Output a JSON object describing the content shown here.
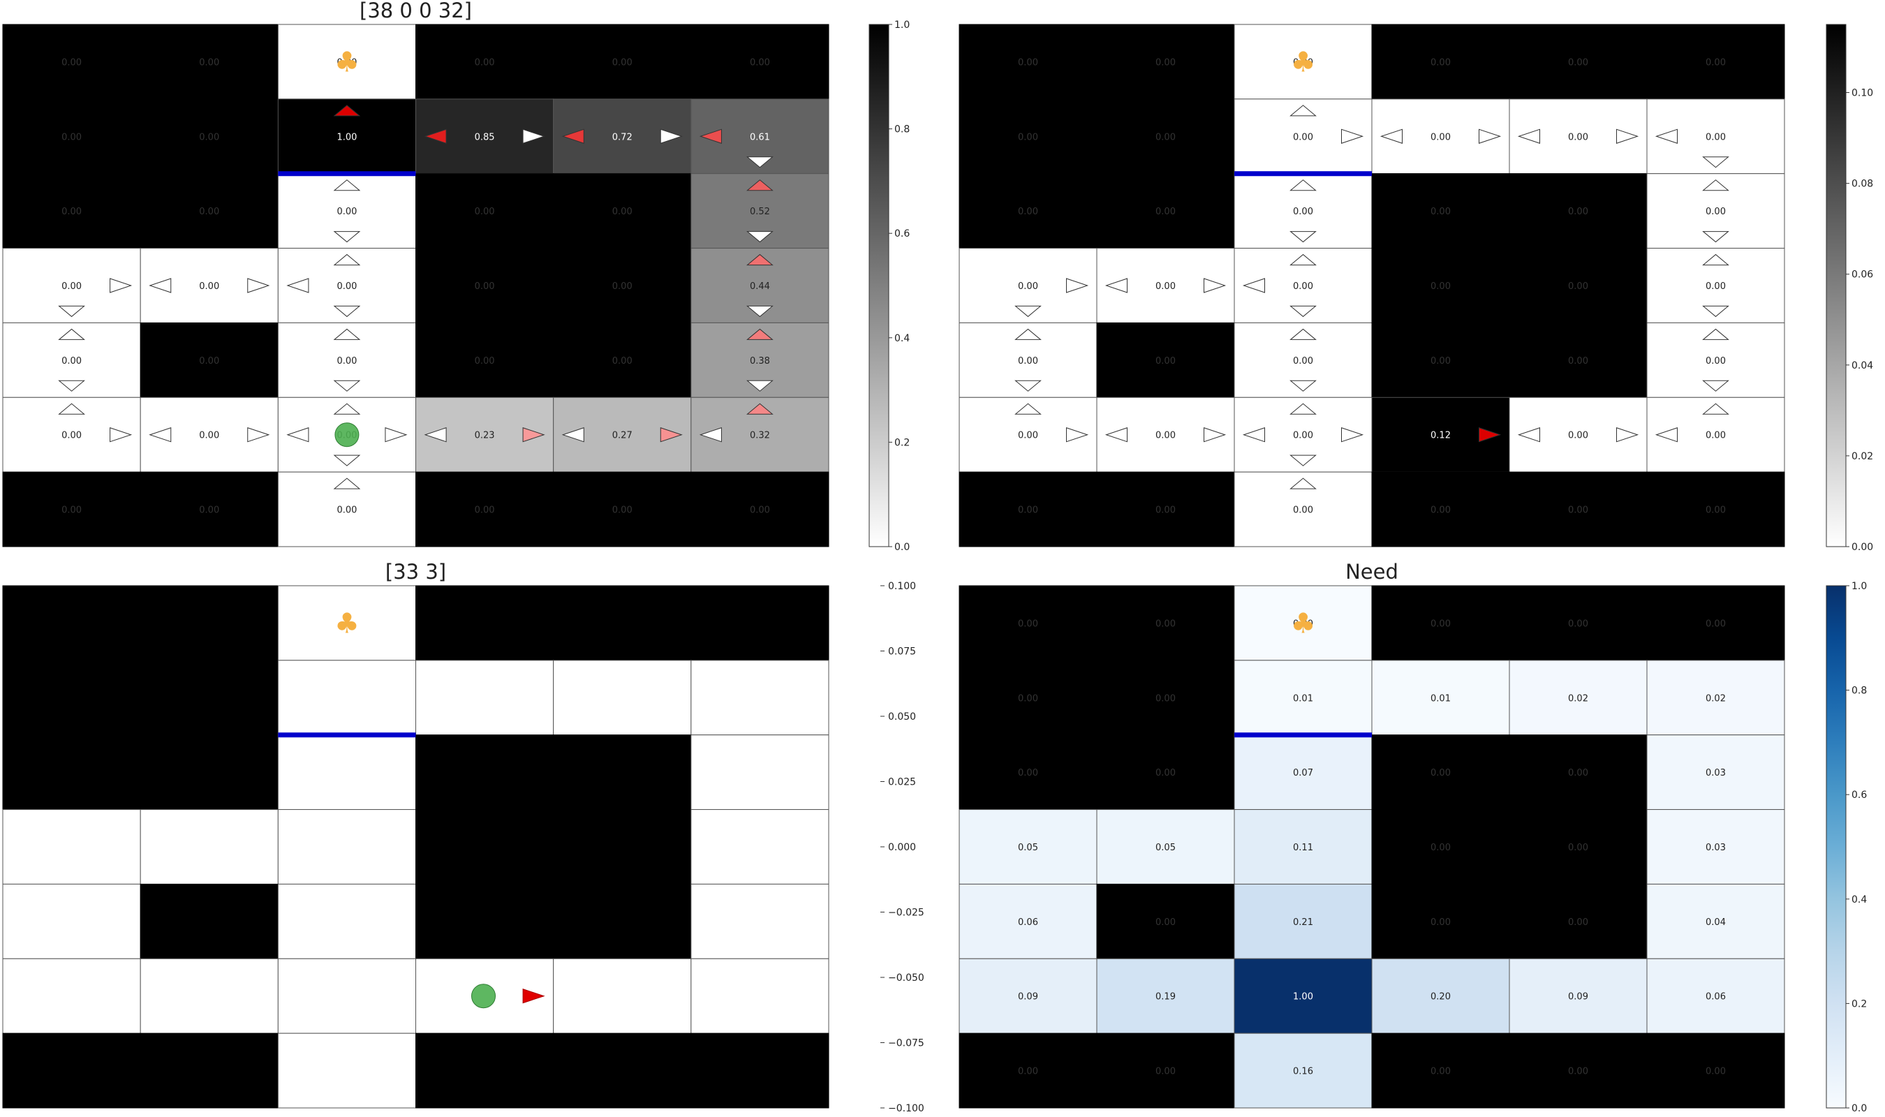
{
  "chart_data": [
    {
      "type": "heatmap",
      "title": "[38 0 0 32]",
      "rows": 7,
      "cols": 6,
      "walls": [
        [
          0,
          0
        ],
        [
          0,
          1
        ],
        [
          0,
          3
        ],
        [
          0,
          4
        ],
        [
          0,
          5
        ],
        [
          1,
          0
        ],
        [
          1,
          1
        ],
        [
          2,
          0
        ],
        [
          2,
          1
        ],
        [
          2,
          3
        ],
        [
          2,
          4
        ],
        [
          3,
          3
        ],
        [
          3,
          4
        ],
        [
          4,
          1
        ],
        [
          4,
          3
        ],
        [
          4,
          4
        ],
        [
          6,
          0
        ],
        [
          6,
          1
        ],
        [
          6,
          3
        ],
        [
          6,
          4
        ],
        [
          6,
          5
        ]
      ],
      "values": [
        [
          0.0,
          0.0,
          0.0,
          0.0,
          0.0,
          0.0
        ],
        [
          0.0,
          0.0,
          1.0,
          0.85,
          0.72,
          0.61
        ],
        [
          0.0,
          0.0,
          0.0,
          0.0,
          0.0,
          0.52
        ],
        [
          0.0,
          0.0,
          0.0,
          0.0,
          0.0,
          0.44
        ],
        [
          0.0,
          0.0,
          0.0,
          0.0,
          0.0,
          0.38
        ],
        [
          0.0,
          0.0,
          0.0,
          0.23,
          0.27,
          0.32
        ],
        [
          0.0,
          0.0,
          0.0,
          0.0,
          0.0,
          0.0
        ]
      ],
      "action_values": [
        {
          "cell": [
            1,
            2
          ],
          "dir": "up",
          "v": 1.0
        },
        {
          "cell": [
            1,
            3
          ],
          "dir": "left",
          "v": 0.85
        },
        {
          "cell": [
            1,
            3
          ],
          "dir": "right",
          "v": 0.0
        },
        {
          "cell": [
            1,
            4
          ],
          "dir": "left",
          "v": 0.72
        },
        {
          "cell": [
            1,
            4
          ],
          "dir": "right",
          "v": 0.0
        },
        {
          "cell": [
            1,
            5
          ],
          "dir": "left",
          "v": 0.61
        },
        {
          "cell": [
            1,
            5
          ],
          "dir": "down",
          "v": 0.0
        },
        {
          "cell": [
            2,
            2
          ],
          "dir": "up",
          "v": 0.0
        },
        {
          "cell": [
            2,
            2
          ],
          "dir": "down",
          "v": 0.0
        },
        {
          "cell": [
            2,
            5
          ],
          "dir": "up",
          "v": 0.52
        },
        {
          "cell": [
            2,
            5
          ],
          "dir": "down",
          "v": 0.0
        },
        {
          "cell": [
            3,
            0
          ],
          "dir": "right",
          "v": 0.0
        },
        {
          "cell": [
            3,
            0
          ],
          "dir": "down",
          "v": 0.0
        },
        {
          "cell": [
            3,
            1
          ],
          "dir": "left",
          "v": 0.0
        },
        {
          "cell": [
            3,
            1
          ],
          "dir": "right",
          "v": 0.0
        },
        {
          "cell": [
            3,
            2
          ],
          "dir": "left",
          "v": 0.0
        },
        {
          "cell": [
            3,
            2
          ],
          "dir": "up",
          "v": 0.0
        },
        {
          "cell": [
            3,
            2
          ],
          "dir": "down",
          "v": 0.0
        },
        {
          "cell": [
            3,
            5
          ],
          "dir": "up",
          "v": 0.44
        },
        {
          "cell": [
            3,
            5
          ],
          "dir": "down",
          "v": 0.0
        },
        {
          "cell": [
            4,
            0
          ],
          "dir": "up",
          "v": 0.0
        },
        {
          "cell": [
            4,
            0
          ],
          "dir": "down",
          "v": 0.0
        },
        {
          "cell": [
            4,
            2
          ],
          "dir": "up",
          "v": 0.0
        },
        {
          "cell": [
            4,
            2
          ],
          "dir": "down",
          "v": 0.0
        },
        {
          "cell": [
            4,
            5
          ],
          "dir": "up",
          "v": 0.38
        },
        {
          "cell": [
            4,
            5
          ],
          "dir": "down",
          "v": 0.0
        },
        {
          "cell": [
            5,
            0
          ],
          "dir": "up",
          "v": 0.0
        },
        {
          "cell": [
            5,
            0
          ],
          "dir": "right",
          "v": 0.0
        },
        {
          "cell": [
            5,
            1
          ],
          "dir": "left",
          "v": 0.0
        },
        {
          "cell": [
            5,
            1
          ],
          "dir": "right",
          "v": 0.0
        },
        {
          "cell": [
            5,
            2
          ],
          "dir": "left",
          "v": 0.0
        },
        {
          "cell": [
            5,
            2
          ],
          "dir": "right",
          "v": 0.0
        },
        {
          "cell": [
            5,
            2
          ],
          "dir": "up",
          "v": 0.0
        },
        {
          "cell": [
            5,
            2
          ],
          "dir": "down",
          "v": 0.0
        },
        {
          "cell": [
            5,
            3
          ],
          "dir": "left",
          "v": 0.0
        },
        {
          "cell": [
            5,
            3
          ],
          "dir": "right",
          "v": 0.23
        },
        {
          "cell": [
            5,
            4
          ],
          "dir": "left",
          "v": 0.0
        },
        {
          "cell": [
            5,
            4
          ],
          "dir": "right",
          "v": 0.27
        },
        {
          "cell": [
            5,
            5
          ],
          "dir": "left",
          "v": 0.0
        },
        {
          "cell": [
            5,
            5
          ],
          "dir": "up",
          "v": 0.32
        },
        {
          "cell": [
            6,
            2
          ],
          "dir": "up",
          "v": 0.0
        }
      ],
      "goal": [
        0,
        2
      ],
      "agent": [
        5,
        2
      ],
      "barrier": {
        "below_cell": [
          1,
          2
        ]
      },
      "colormap": "gray_r",
      "colorbar_range": [
        0,
        1.0
      ],
      "colorbar_ticks": [
        "0.0",
        "0.2",
        "0.4",
        "0.6",
        "0.8",
        "1.0"
      ]
    },
    {
      "type": "heatmap",
      "title": "",
      "rows": 7,
      "cols": 6,
      "walls": [
        [
          0,
          0
        ],
        [
          0,
          1
        ],
        [
          0,
          3
        ],
        [
          0,
          4
        ],
        [
          0,
          5
        ],
        [
          1,
          0
        ],
        [
          1,
          1
        ],
        [
          2,
          0
        ],
        [
          2,
          1
        ],
        [
          2,
          3
        ],
        [
          2,
          4
        ],
        [
          3,
          3
        ],
        [
          3,
          4
        ],
        [
          4,
          1
        ],
        [
          4,
          3
        ],
        [
          4,
          4
        ],
        [
          6,
          0
        ],
        [
          6,
          1
        ],
        [
          6,
          3
        ],
        [
          6,
          4
        ],
        [
          6,
          5
        ]
      ],
      "values": [
        [
          0.0,
          0.0,
          0.0,
          0.0,
          0.0,
          0.0
        ],
        [
          0.0,
          0.0,
          0.0,
          0.0,
          0.0,
          0.0
        ],
        [
          0.0,
          0.0,
          0.0,
          0.0,
          0.0,
          0.0
        ],
        [
          0.0,
          0.0,
          0.0,
          0.0,
          0.0,
          0.0
        ],
        [
          0.0,
          0.0,
          0.0,
          0.0,
          0.0,
          0.0
        ],
        [
          0.0,
          0.0,
          0.0,
          0.12,
          0.0,
          0.0
        ],
        [
          0.0,
          0.0,
          0.0,
          0.0,
          0.0,
          0.0
        ]
      ],
      "action_values": [
        {
          "cell": [
            1,
            2
          ],
          "dir": "up",
          "v": 0.0
        },
        {
          "cell": [
            1,
            2
          ],
          "dir": "right",
          "v": 0.0
        },
        {
          "cell": [
            1,
            3
          ],
          "dir": "left",
          "v": 0.0
        },
        {
          "cell": [
            1,
            3
          ],
          "dir": "right",
          "v": 0.0
        },
        {
          "cell": [
            1,
            4
          ],
          "dir": "left",
          "v": 0.0
        },
        {
          "cell": [
            1,
            4
          ],
          "dir": "right",
          "v": 0.0
        },
        {
          "cell": [
            1,
            5
          ],
          "dir": "left",
          "v": 0.0
        },
        {
          "cell": [
            1,
            5
          ],
          "dir": "down",
          "v": 0.0
        },
        {
          "cell": [
            2,
            2
          ],
          "dir": "up",
          "v": 0.0
        },
        {
          "cell": [
            2,
            2
          ],
          "dir": "down",
          "v": 0.0
        },
        {
          "cell": [
            2,
            5
          ],
          "dir": "up",
          "v": 0.0
        },
        {
          "cell": [
            2,
            5
          ],
          "dir": "down",
          "v": 0.0
        },
        {
          "cell": [
            3,
            0
          ],
          "dir": "right",
          "v": 0.0
        },
        {
          "cell": [
            3,
            0
          ],
          "dir": "down",
          "v": 0.0
        },
        {
          "cell": [
            3,
            1
          ],
          "dir": "left",
          "v": 0.0
        },
        {
          "cell": [
            3,
            1
          ],
          "dir": "right",
          "v": 0.0
        },
        {
          "cell": [
            3,
            2
          ],
          "dir": "left",
          "v": 0.0
        },
        {
          "cell": [
            3,
            2
          ],
          "dir": "up",
          "v": 0.0
        },
        {
          "cell": [
            3,
            2
          ],
          "dir": "down",
          "v": 0.0
        },
        {
          "cell": [
            3,
            5
          ],
          "dir": "up",
          "v": 0.0
        },
        {
          "cell": [
            3,
            5
          ],
          "dir": "down",
          "v": 0.0
        },
        {
          "cell": [
            4,
            0
          ],
          "dir": "up",
          "v": 0.0
        },
        {
          "cell": [
            4,
            0
          ],
          "dir": "down",
          "v": 0.0
        },
        {
          "cell": [
            4,
            2
          ],
          "dir": "up",
          "v": 0.0
        },
        {
          "cell": [
            4,
            2
          ],
          "dir": "down",
          "v": 0.0
        },
        {
          "cell": [
            4,
            5
          ],
          "dir": "up",
          "v": 0.0
        },
        {
          "cell": [
            4,
            5
          ],
          "dir": "down",
          "v": 0.0
        },
        {
          "cell": [
            5,
            0
          ],
          "dir": "up",
          "v": 0.0
        },
        {
          "cell": [
            5,
            0
          ],
          "dir": "right",
          "v": 0.0
        },
        {
          "cell": [
            5,
            1
          ],
          "dir": "left",
          "v": 0.0
        },
        {
          "cell": [
            5,
            1
          ],
          "dir": "right",
          "v": 0.0
        },
        {
          "cell": [
            5,
            2
          ],
          "dir": "left",
          "v": 0.0
        },
        {
          "cell": [
            5,
            2
          ],
          "dir": "right",
          "v": 0.0
        },
        {
          "cell": [
            5,
            2
          ],
          "dir": "up",
          "v": 0.0
        },
        {
          "cell": [
            5,
            2
          ],
          "dir": "down",
          "v": 0.0
        },
        {
          "cell": [
            5,
            3
          ],
          "dir": "right",
          "v": 0.12
        },
        {
          "cell": [
            5,
            4
          ],
          "dir": "left",
          "v": 0.0
        },
        {
          "cell": [
            5,
            4
          ],
          "dir": "right",
          "v": 0.0
        },
        {
          "cell": [
            5,
            5
          ],
          "dir": "left",
          "v": 0.0
        },
        {
          "cell": [
            5,
            5
          ],
          "dir": "up",
          "v": 0.0
        },
        {
          "cell": [
            6,
            2
          ],
          "dir": "up",
          "v": 0.0
        }
      ],
      "goal": [
        0,
        2
      ],
      "barrier": {
        "below_cell": [
          1,
          2
        ]
      },
      "colormap": "gray_r",
      "colorbar_range": [
        0,
        0.115
      ],
      "colorbar_ticks": [
        "0.00",
        "0.02",
        "0.04",
        "0.06",
        "0.08",
        "0.10"
      ]
    },
    {
      "type": "heatmap",
      "title": "[33 3]",
      "rows": 7,
      "cols": 6,
      "walls": [
        [
          0,
          0
        ],
        [
          0,
          1
        ],
        [
          0,
          3
        ],
        [
          0,
          4
        ],
        [
          0,
          5
        ],
        [
          1,
          0
        ],
        [
          1,
          1
        ],
        [
          2,
          0
        ],
        [
          2,
          1
        ],
        [
          2,
          3
        ],
        [
          2,
          4
        ],
        [
          3,
          3
        ],
        [
          3,
          4
        ],
        [
          4,
          1
        ],
        [
          4,
          3
        ],
        [
          4,
          4
        ],
        [
          6,
          0
        ],
        [
          6,
          1
        ],
        [
          6,
          3
        ],
        [
          6,
          4
        ],
        [
          6,
          5
        ]
      ],
      "goal": [
        0,
        2
      ],
      "agent": [
        5,
        3
      ],
      "action": {
        "cell": [
          5,
          3
        ],
        "dir": "right"
      },
      "barrier": {
        "below_cell": [
          1,
          2
        ]
      },
      "colorbar_range": [
        -0.1,
        0.1
      ],
      "colorbar_ticks": [
        "0.100",
        "0.075",
        "0.050",
        "0.025",
        "0.000",
        "−0.025",
        "−0.050",
        "−0.075",
        "−0.100"
      ]
    },
    {
      "type": "heatmap",
      "title": "Need",
      "rows": 7,
      "cols": 6,
      "walls": [
        [
          0,
          0
        ],
        [
          0,
          1
        ],
        [
          0,
          3
        ],
        [
          0,
          4
        ],
        [
          0,
          5
        ],
        [
          1,
          0
        ],
        [
          1,
          1
        ],
        [
          2,
          0
        ],
        [
          2,
          1
        ],
        [
          2,
          3
        ],
        [
          2,
          4
        ],
        [
          3,
          3
        ],
        [
          3,
          4
        ],
        [
          4,
          1
        ],
        [
          4,
          3
        ],
        [
          4,
          4
        ],
        [
          6,
          0
        ],
        [
          6,
          1
        ],
        [
          6,
          3
        ],
        [
          6,
          4
        ],
        [
          6,
          5
        ]
      ],
      "values": [
        [
          0.0,
          0.0,
          0.0,
          0.0,
          0.0,
          0.0
        ],
        [
          0.0,
          0.0,
          0.01,
          0.01,
          0.02,
          0.02
        ],
        [
          0.0,
          0.0,
          0.07,
          0.0,
          0.0,
          0.03
        ],
        [
          0.05,
          0.05,
          0.11,
          0.0,
          0.0,
          0.03
        ],
        [
          0.06,
          0.0,
          0.21,
          0.0,
          0.0,
          0.04
        ],
        [
          0.09,
          0.19,
          1.0,
          0.2,
          0.09,
          0.06
        ],
        [
          0.0,
          0.0,
          0.16,
          0.0,
          0.0,
          0.0
        ]
      ],
      "goal": [
        0,
        2
      ],
      "barrier": {
        "below_cell": [
          1,
          2
        ]
      },
      "colormap": "Blues",
      "colorbar_range": [
        0,
        1.0
      ],
      "colorbar_ticks": [
        "0.0",
        "0.2",
        "0.4",
        "0.6",
        "0.8",
        "1.0"
      ]
    }
  ],
  "glyphs": {
    "goal": "♣"
  },
  "colors": {
    "wall": "#000000",
    "barrier": "#0000cc",
    "agent": "#4caf50",
    "goal": "#f5b041",
    "arrow_best": "#e00000"
  }
}
